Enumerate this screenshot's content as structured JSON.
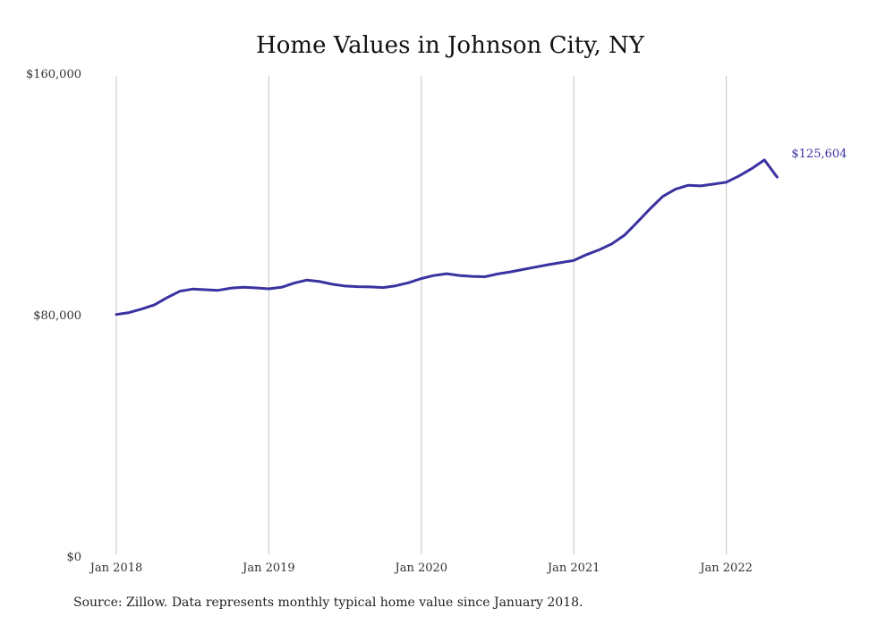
{
  "chart_data": {
    "type": "line",
    "title": "Home Values in Johnson City, NY",
    "xlabel": "",
    "ylabel": "",
    "ylim": [
      0,
      160000
    ],
    "y_ticks": [
      {
        "value": 0,
        "label": "$0"
      },
      {
        "value": 80000,
        "label": "$80,000"
      },
      {
        "value": 160000,
        "label": "$160,000"
      }
    ],
    "x_ticks": [
      {
        "month_index": 0,
        "label": "Jan 2018"
      },
      {
        "month_index": 12,
        "label": "Jan 2019"
      },
      {
        "month_index": 24,
        "label": "Jan 2020"
      },
      {
        "month_index": 36,
        "label": "Jan 2021"
      },
      {
        "month_index": 48,
        "label": "Jan 2022"
      }
    ],
    "grid": {
      "vertical": true,
      "horizontal": false
    },
    "line_color": "#3a32a0",
    "end_label": "$125,604",
    "series": [
      {
        "x": [
          "2018-01",
          "2018-02",
          "2018-03",
          "2018-04",
          "2018-05",
          "2018-06",
          "2018-07",
          "2018-08",
          "2018-09",
          "2018-10",
          "2018-11",
          "2018-12",
          "2019-01",
          "2019-02",
          "2019-03",
          "2019-04",
          "2019-05",
          "2019-06",
          "2019-07",
          "2019-08",
          "2019-09",
          "2019-10",
          "2019-11",
          "2019-12",
          "2020-01",
          "2020-02",
          "2020-03",
          "2020-04",
          "2020-05",
          "2020-06",
          "2020-07",
          "2020-08",
          "2020-09",
          "2020-10",
          "2020-11",
          "2020-12",
          "2021-01",
          "2021-02",
          "2021-03",
          "2021-04",
          "2021-05",
          "2021-06",
          "2021-07",
          "2021-08",
          "2021-09",
          "2021-10",
          "2021-11",
          "2021-12",
          "2022-01",
          "2022-02",
          "2022-03",
          "2022-04",
          "2022-05"
        ],
        "values": [
          80100,
          80700,
          81900,
          83300,
          85700,
          87800,
          88500,
          88300,
          88100,
          88800,
          89100,
          88900,
          88600,
          89100,
          90500,
          91500,
          91000,
          90100,
          89500,
          89300,
          89200,
          89000,
          89600,
          90600,
          92000,
          93000,
          93600,
          93000,
          92700,
          92600,
          93500,
          94200,
          95000,
          95800,
          96600,
          97300,
          98000,
          99900,
          101500,
          103500,
          106400,
          110700,
          115100,
          119200,
          121600,
          122900,
          122700,
          123300,
          123900,
          126000,
          128400,
          131300,
          125604
        ]
      }
    ]
  },
  "footer": {
    "source": "Source: Zillow. Data represents monthly typical home value since January 2018."
  }
}
